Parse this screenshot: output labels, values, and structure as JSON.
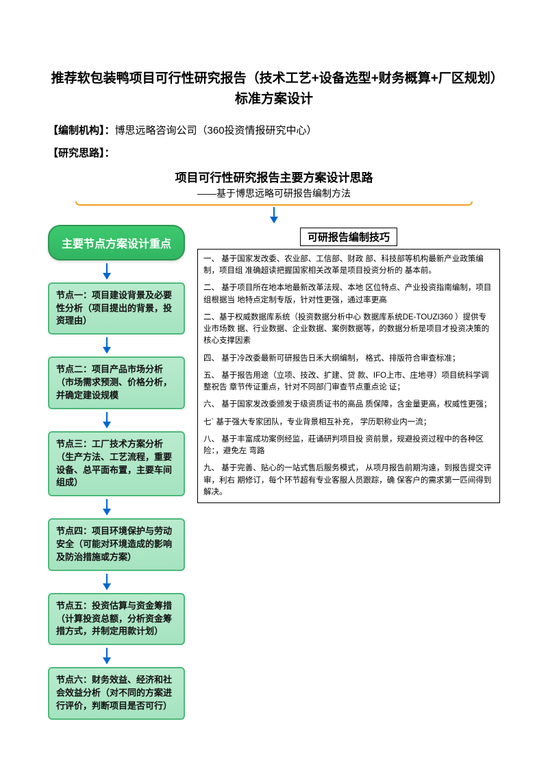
{
  "document": {
    "title": "推荐软包装鸭项目可行性研究报告（技术工艺+设备选型+财务概算+厂区规划）标准方案设计",
    "org_label": "【编制机构】：",
    "org_value": "博思远略咨询公司（360投资情报研究中心）",
    "idea_label": "【研究思路】："
  },
  "diagram": {
    "title": "项目可行性研究报告主要方案设计思路",
    "subtitle": "——基于博思远略可研报告编制方法",
    "main_node": "主要节点方案设计重点",
    "nodes": [
      "节点一：项目建设背景及必要性分析（项目提出的背景，投资理由）",
      "节点二：项目产品市场分析（市场需求预测、价格分析，并确定建设规模",
      "节点三：工厂技术方案分析（生产方法、工艺流程，重要设备、总平面布置，主要车间组成）",
      "节点四：项目环境保护与劳动安全（可能对环境造成的影响及防治措施或方案）",
      "节点五：投资估算与资金筹措（计算投资总额，分析资金筹措方式，并制定用款计划）",
      "节点六：财务效益、经济和社会效益分析（对不同的方案进行评价，判断项目是否可行）"
    ],
    "colors": {
      "main_bg_from": "#3dc96f",
      "main_bg_to": "#31b561",
      "main_border": "#2a9652",
      "sub_bg_from": "#b9ebce",
      "sub_bg_to": "#a5e3c0",
      "sub_border": "#4db87a",
      "arrow": "#0066cc",
      "bracket": "#f0a020"
    }
  },
  "tips": {
    "title": "可研报告编制技巧",
    "items": [
      "一、 基于国家发改委、农业部、工信部、财政 部、科技部等机构最新产业政策编制，项目组 准确超读把握国家相关改革是项目投资分析的 基本前。",
      "二、 基于项目所在地本地最新改革法规、本地 区位特点、产业投资指南编制，项目组根据当 地特点定制专版，针对性更强，通过率更高",
      "二、基于权威数据库系统（投资数据分析中心 数据库系统DE-TOUZI360 ）提供专业市场数 据、行业数据、企业数据、案例数据等，的数据分析是项目才投资决策的核心支撑因素",
      "四、 基于冷改委最新可研报告日禾大纲编制， 格式、排版符合审查标准；",
      "五、 基于报告用途（立项、技改、扩建、贷 款、IFO上市、庄地寻）项目统科学调整祝告 章节传证重点，针对不同部门审查节点重点论 证；",
      "六、 基于国家发改委颁发于级资质证书的高品 质保障，含金量更高，权威性更强；",
      "七` 基于强大专家团队，专业背景相互补充， 学历职称业内一流；",
      "八、 基于丰富成功案例经监，莊诵研判项目投 资前景，规避投资过程中的各种区险：，避免左 弯路",
      "九、 基于完善、贴心的一站式售后服务模式，  从项月报告前期沟遠，到报告提交评审，利右 期修订，每个环节超有专业客服人员跟踪，确 保客户的需求第一匹间得到解决。"
    ]
  }
}
